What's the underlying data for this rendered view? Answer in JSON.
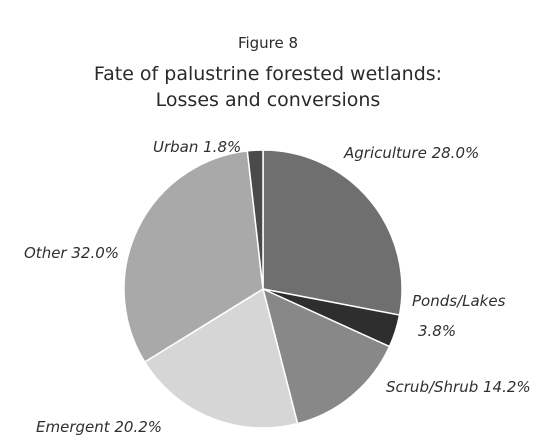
{
  "figure": {
    "label": "Figure 8"
  },
  "chart_data": {
    "type": "pie",
    "title_lines": [
      "Fate of palustrine forested wetlands:",
      "Losses and conversions"
    ],
    "slices": [
      {
        "name": "Agriculture",
        "value": 28.0,
        "label": "Agriculture  28.0%",
        "color": "#6f6f6f"
      },
      {
        "name": "Ponds/Lakes",
        "value": 3.8,
        "label_lines": [
          "Ponds/Lakes",
          "3.8%"
        ],
        "color": "#2e2e2e"
      },
      {
        "name": "Scrub/Shrub",
        "value": 14.2,
        "label": "Scrub/Shrub  14.2%",
        "color": "#888888"
      },
      {
        "name": "Emergent",
        "value": 20.2,
        "label": "Emergent  20.2%",
        "color": "#d6d6d6"
      },
      {
        "name": "Other",
        "value": 32.0,
        "label": "Other  32.0%",
        "color": "#a9a9a9"
      },
      {
        "name": "Urban",
        "value": 1.8,
        "label": "Urban  1.8%",
        "color": "#4a4a4a"
      }
    ],
    "start_angle_deg": 0,
    "direction": "clockwise"
  }
}
